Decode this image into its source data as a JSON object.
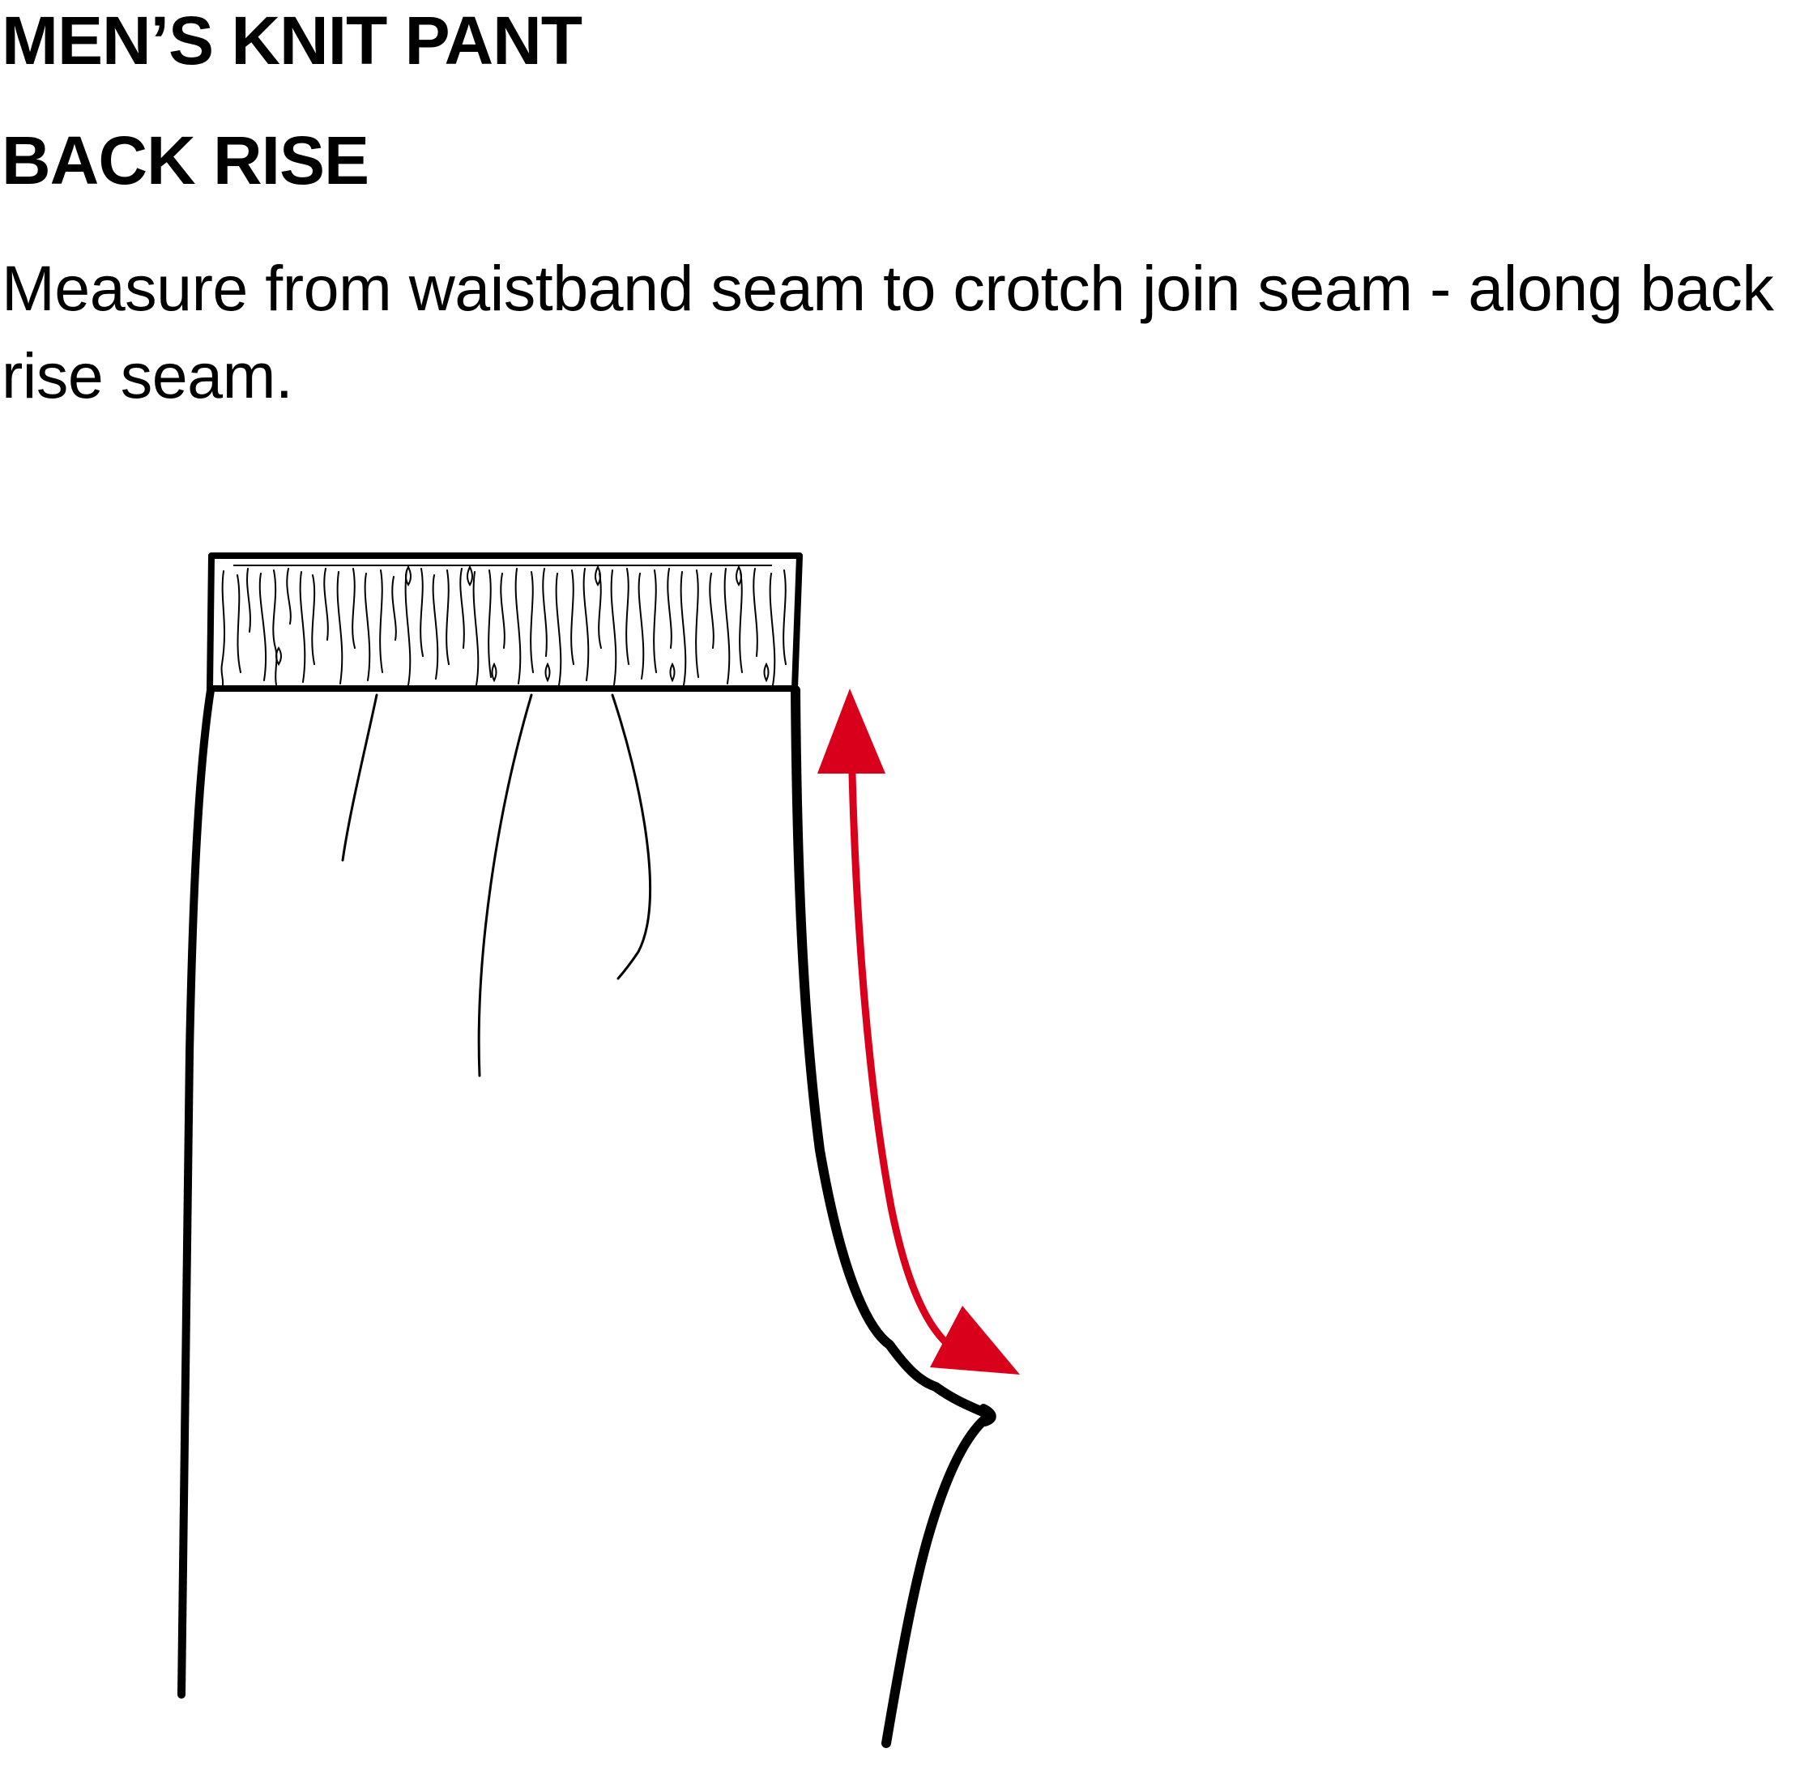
{
  "header": {
    "title": "MEN’S KNIT PANT",
    "subtitle": "BACK RISE"
  },
  "instructions": {
    "text": "Measure from waistband seam to crotch join seam - along back rise seam."
  },
  "colors": {
    "outline": "#000000",
    "measure_arrow": "#d9001b",
    "background": "#ffffff"
  }
}
